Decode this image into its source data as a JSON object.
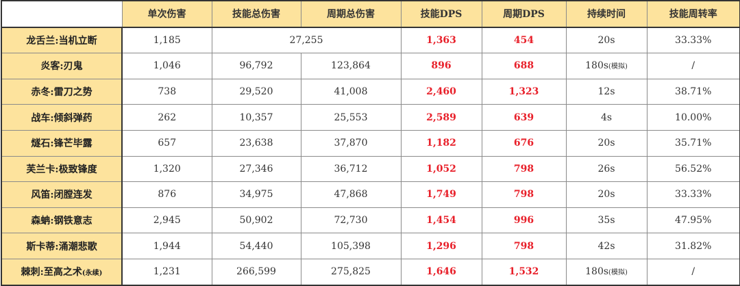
{
  "header": [
    "",
    "单次伤害",
    "技能总伤害",
    "周期总伤害",
    "技能DPS",
    "周期DPS",
    "持续时间",
    "技能周转率"
  ],
  "rows": [
    {
      "name": "龙舌兰:当机立断",
      "name_note": "",
      "single": "1,185",
      "skill_total": "27,255",
      "cycle_total": "",
      "merged": true,
      "skill_dps": "1,363",
      "cycle_dps": "454",
      "duration": "20s",
      "duration_note": "",
      "rate": "33.33%"
    },
    {
      "name": "炎客:刃鬼",
      "name_note": "",
      "single": "1,046",
      "skill_total": "96,792",
      "cycle_total": "123,864",
      "merged": false,
      "skill_dps": "896",
      "cycle_dps": "688",
      "duration": "180s",
      "duration_note": "(模拟)",
      "rate": "/"
    },
    {
      "name": "赤冬:雷刀之势",
      "name_note": "",
      "single": "738",
      "skill_total": "29,520",
      "cycle_total": "41,008",
      "merged": false,
      "skill_dps": "2,460",
      "cycle_dps": "1,323",
      "duration": "12s",
      "duration_note": "",
      "rate": "38.71%"
    },
    {
      "name": "战车:倾斜弹药",
      "name_note": "",
      "single": "262",
      "skill_total": "10,357",
      "cycle_total": "25,553",
      "merged": false,
      "skill_dps": "2,589",
      "cycle_dps": "639",
      "duration": "4s",
      "duration_note": "",
      "rate": "10.00%"
    },
    {
      "name": "燧石:锋芒毕露",
      "name_note": "",
      "single": "657",
      "skill_total": "23,638",
      "cycle_total": "37,870",
      "merged": false,
      "skill_dps": "1,182",
      "cycle_dps": "676",
      "duration": "20s",
      "duration_note": "",
      "rate": "35.71%"
    },
    {
      "name": "芙兰卡:极致锋度",
      "name_note": "",
      "single": "1,320",
      "skill_total": "27,346",
      "cycle_total": "36,712",
      "merged": false,
      "skill_dps": "1,052",
      "cycle_dps": "798",
      "duration": "26s",
      "duration_note": "",
      "rate": "56.52%"
    },
    {
      "name": "风笛:闭膛连发",
      "name_note": "",
      "single": "876",
      "skill_total": "34,975",
      "cycle_total": "47,868",
      "merged": false,
      "skill_dps": "1,749",
      "cycle_dps": "798",
      "duration": "20s",
      "duration_note": "",
      "rate": "33.33%"
    },
    {
      "name": "森蚺:钢铁意志",
      "name_note": "",
      "single": "2,945",
      "skill_total": "50,902",
      "cycle_total": "72,730",
      "merged": false,
      "skill_dps": "1,454",
      "cycle_dps": "996",
      "duration": "35s",
      "duration_note": "",
      "rate": "47.95%"
    },
    {
      "name": "斯卡蒂:涌潮悲歌",
      "name_note": "",
      "single": "1,944",
      "skill_total": "54,440",
      "cycle_total": "105,398",
      "merged": false,
      "skill_dps": "1,296",
      "cycle_dps": "798",
      "duration": "42s",
      "duration_note": "",
      "rate": "31.82%"
    },
    {
      "name": "棘刺:至高之术",
      "name_note": "(永续)",
      "single": "1,231",
      "skill_total": "266,599",
      "cycle_total": "275,825",
      "merged": false,
      "skill_dps": "1,646",
      "cycle_dps": "1,532",
      "duration": "180s",
      "duration_note": "(模拟)",
      "rate": "/"
    }
  ],
  "colors": {
    "header_bg": "#fde39d",
    "dps_text": "#e8202a"
  }
}
